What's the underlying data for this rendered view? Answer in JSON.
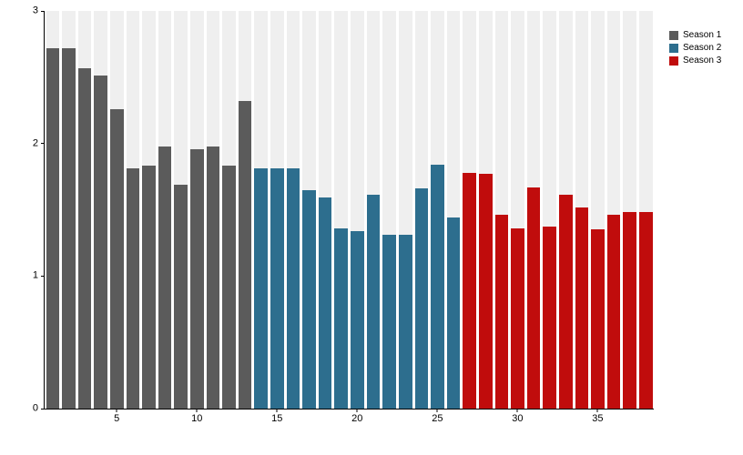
{
  "chart_data": {
    "type": "bar",
    "title": "",
    "xlabel": "",
    "ylabel": "",
    "ylim": [
      0,
      3
    ],
    "y_ticks": [
      0,
      1,
      2,
      3
    ],
    "x_ticks": [
      5,
      10,
      15,
      20,
      25,
      30,
      35
    ],
    "grid": false,
    "background_stripe_color": "#efefef",
    "legend_position": "top-right",
    "series": [
      {
        "name": "Season 1",
        "color": "#5b5b5b",
        "x_start": 1,
        "values": [
          2.72,
          2.72,
          2.57,
          2.51,
          2.26,
          1.81,
          1.83,
          1.98,
          1.69,
          1.96,
          1.98,
          1.83,
          2.32
        ]
      },
      {
        "name": "Season 2",
        "color": "#2d6e8e",
        "x_start": 14,
        "values": [
          1.81,
          1.81,
          1.81,
          1.65,
          1.59,
          1.36,
          1.34,
          1.61,
          1.31,
          1.31,
          1.66,
          1.84,
          1.44
        ]
      },
      {
        "name": "Season 3",
        "color": "#c00c0c",
        "x_start": 27,
        "values": [
          1.78,
          1.77,
          1.46,
          1.36,
          1.67,
          1.37,
          1.61,
          1.52,
          1.35,
          1.46,
          1.48,
          1.48
        ]
      }
    ]
  }
}
